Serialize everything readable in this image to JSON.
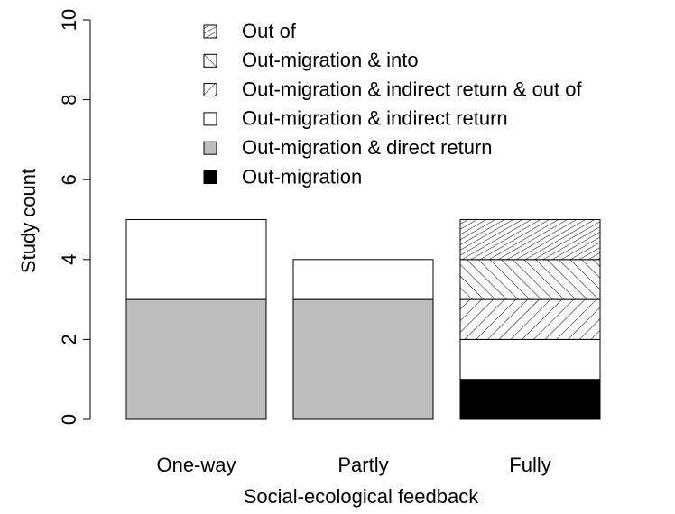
{
  "chart_data": {
    "type": "stacked_bar",
    "xlabel": "Social-ecological feedback",
    "ylabel": "Study count",
    "categories": [
      "One-way",
      "Partly",
      "Fully"
    ],
    "series": [
      {
        "name": "Out-migration",
        "color": "#000000",
        "values": [
          0,
          0,
          1
        ]
      },
      {
        "name": "Out-migration & direct return",
        "color": "#bebebe",
        "values": [
          3,
          3,
          0
        ]
      },
      {
        "name": "Out-migration & indirect return",
        "color": "#ffffff",
        "values": [
          2,
          1,
          1
        ]
      },
      {
        "name": "Out-migration & indirect return & out of",
        "color": "#ffffff",
        "hatch": "forward",
        "values": [
          0,
          0,
          1
        ]
      },
      {
        "name": "Out-migration & into",
        "color": "#ffffff",
        "hatch": "back",
        "values": [
          0,
          0,
          1
        ]
      },
      {
        "name": "Out of",
        "color": "#ffffff",
        "hatch": "forward-dense",
        "values": [
          0,
          0,
          1
        ]
      }
    ],
    "ylim": [
      0,
      10
    ],
    "yticks": [
      0,
      2,
      4,
      6,
      8,
      10
    ],
    "legend": "top"
  }
}
